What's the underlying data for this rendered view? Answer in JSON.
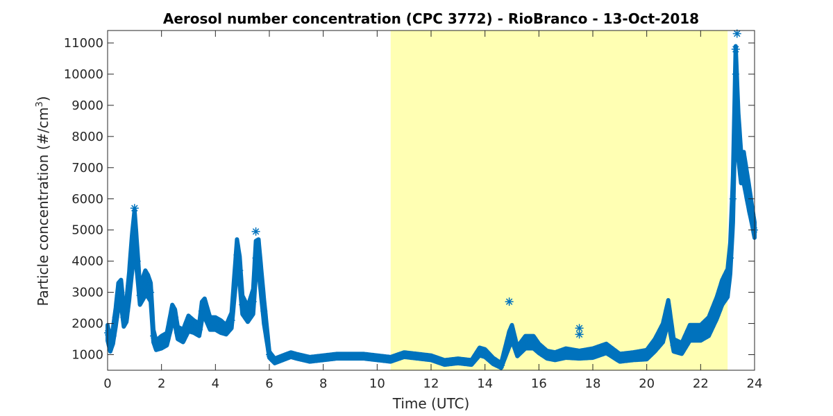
{
  "chart_data": {
    "type": "scatter",
    "title": "Aerosol number concentration (CPC 3772) - RioBranco - 13-Oct-2018",
    "xlabel": "Time (UTC)",
    "ylabel_main": "Particle concentration (#/cm",
    "ylabel_sup": "3",
    "ylabel_close": ")",
    "xlim": [
      0,
      24
    ],
    "ylim": [
      500,
      11400
    ],
    "xticks": [
      0,
      2,
      4,
      6,
      8,
      10,
      12,
      14,
      16,
      18,
      20,
      22,
      24
    ],
    "yticks": [
      1000,
      2000,
      3000,
      4000,
      5000,
      6000,
      7000,
      8000,
      9000,
      10000,
      11000
    ],
    "grid": false,
    "highlight_band": {
      "x_start": 10.5,
      "x_end": 23.0,
      "color": "#ffffb3"
    },
    "marker": "asterisk",
    "series": [
      {
        "color": "#0072bd",
        "x": [
          0.0,
          0.1,
          0.2,
          0.3,
          0.4,
          0.5,
          0.6,
          0.7,
          0.8,
          0.9,
          1.0,
          1.1,
          1.2,
          1.3,
          1.4,
          1.5,
          1.6,
          1.7,
          1.8,
          2.0,
          2.2,
          2.4,
          2.5,
          2.6,
          2.8,
          3.0,
          3.2,
          3.4,
          3.5,
          3.6,
          3.8,
          4.0,
          4.2,
          4.4,
          4.6,
          4.8,
          4.9,
          5.0,
          5.2,
          5.4,
          5.5,
          5.6,
          5.8,
          6.0,
          6.2,
          6.5,
          6.8,
          7.0,
          7.5,
          8.0,
          8.5,
          9.0,
          9.5,
          10.0,
          10.5,
          11.0,
          11.5,
          12.0,
          12.5,
          13.0,
          13.5,
          13.8,
          14.0,
          14.3,
          14.6,
          14.9,
          15.0,
          15.2,
          15.5,
          15.8,
          16.0,
          16.3,
          16.6,
          17.0,
          17.5,
          18.0,
          18.5,
          19.0,
          19.5,
          20.0,
          20.3,
          20.6,
          20.8,
          21.0,
          21.3,
          21.6,
          22.0,
          22.3,
          22.6,
          22.8,
          23.0,
          23.1,
          23.2,
          23.3,
          23.4,
          23.5,
          23.6,
          23.7,
          23.8,
          23.9,
          24.0
        ],
        "y": [
          1700,
          1300,
          1600,
          2200,
          2900,
          3000,
          2200,
          2400,
          3200,
          4200,
          5000,
          4000,
          2900,
          3100,
          3300,
          3200,
          3000,
          1600,
          1300,
          1400,
          1500,
          2300,
          2200,
          1700,
          1600,
          2000,
          1900,
          1800,
          2400,
          2500,
          2000,
          2000,
          1900,
          1800,
          2100,
          4200,
          3700,
          2600,
          2300,
          2700,
          4100,
          4200,
          2400,
          1000,
          800,
          900,
          1000,
          950,
          850,
          900,
          950,
          950,
          950,
          900,
          850,
          1000,
          950,
          900,
          750,
          800,
          750,
          1100,
          1050,
          800,
          650,
          1500,
          1700,
          1100,
          1400,
          1400,
          1200,
          1000,
          950,
          1050,
          1000,
          1050,
          1200,
          900,
          950,
          1000,
          1300,
          1700,
          2400,
          1300,
          1200,
          1700,
          1700,
          1900,
          2500,
          3000,
          3300,
          4100,
          6000,
          10000,
          8000,
          7000,
          7000,
          6500,
          6000,
          5500,
          5000
        ],
        "spread": [
          500,
          400,
          500,
          600,
          800,
          800,
          600,
          700,
          900,
          1200,
          1300,
          900,
          600,
          700,
          800,
          700,
          600,
          400,
          300,
          400,
          400,
          600,
          500,
          400,
          400,
          500,
          400,
          400,
          600,
          600,
          400,
          400,
          400,
          300,
          500,
          1000,
          900,
          600,
          500,
          800,
          1100,
          1000,
          800,
          200,
          150,
          150,
          150,
          150,
          150,
          150,
          150,
          150,
          150,
          150,
          150,
          150,
          150,
          150,
          150,
          150,
          150,
          250,
          250,
          200,
          150,
          500,
          500,
          300,
          400,
          400,
          300,
          250,
          250,
          300,
          250,
          300,
          300,
          250,
          250,
          300,
          400,
          600,
          700,
          400,
          350,
          500,
          500,
          600,
          700,
          800,
          900,
          1000,
          1500,
          1800,
          1500,
          1000,
          1000,
          900,
          800,
          600,
          500
        ]
      }
    ],
    "outliers": [
      {
        "x": 1.0,
        "y": 5700
      },
      {
        "x": 5.5,
        "y": 4950
      },
      {
        "x": 14.9,
        "y": 2700
      },
      {
        "x": 17.5,
        "y": 1850
      },
      {
        "x": 17.5,
        "y": 1650
      },
      {
        "x": 23.35,
        "y": 11300
      },
      {
        "x": 23.3,
        "y": 10800
      }
    ]
  }
}
